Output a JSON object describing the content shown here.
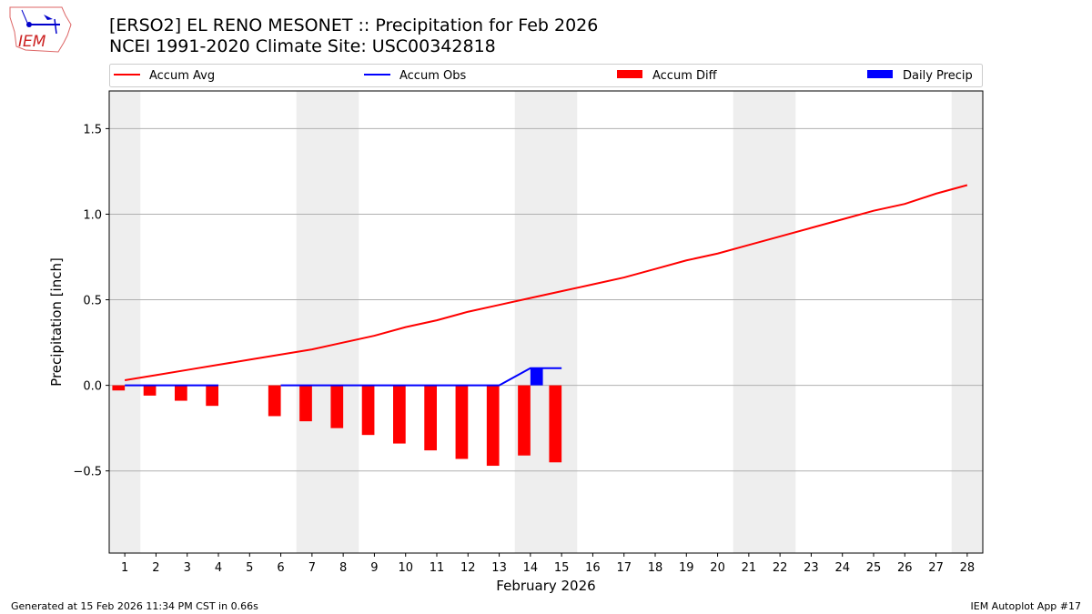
{
  "header": {
    "title": "[ERSO2] EL RENO MESONET :: Precipitation for Feb 2026",
    "subtitle": "NCEI 1991-2020 Climate Site: USC00342818",
    "logo_text": "IEM"
  },
  "footer": {
    "left": "Generated at 15 Feb 2026 11:34 PM CST in 0.66s",
    "right": "IEM Autoplot App #17"
  },
  "chart_data": {
    "type": "line+bar",
    "xlabel": "February 2026",
    "ylabel": "Precipitation [inch]",
    "xlim": [
      0.5,
      28.5
    ],
    "ylim": [
      -0.98,
      1.72
    ],
    "x_ticks": [
      1,
      2,
      3,
      4,
      5,
      6,
      7,
      8,
      9,
      10,
      11,
      12,
      13,
      14,
      15,
      16,
      17,
      18,
      19,
      20,
      21,
      22,
      23,
      24,
      25,
      26,
      27,
      28
    ],
    "y_ticks": [
      {
        "v": -0.5,
        "label": "−0.5"
      },
      {
        "v": 0,
        "label": "0.0"
      },
      {
        "v": 0.5,
        "label": "0.5"
      },
      {
        "v": 1.0,
        "label": "1.0"
      },
      {
        "v": 1.5,
        "label": "1.5"
      }
    ],
    "grid": "horizontal",
    "weekend_shading": [
      [
        0.5,
        1.5
      ],
      [
        6.5,
        8.5
      ],
      [
        13.5,
        15.5
      ],
      [
        20.5,
        22.5
      ],
      [
        27.5,
        28.5
      ]
    ],
    "colors": {
      "avg": "#ff0000",
      "obs": "#0000ff",
      "diff": "#ff0000",
      "daily": "#0000ff",
      "shade": "#eeeeee"
    },
    "legend_position": "top",
    "series": [
      {
        "name": "Accum Avg",
        "kind": "line",
        "values": [
          0.03,
          0.06,
          0.09,
          0.12,
          0.15,
          0.18,
          0.21,
          0.25,
          0.29,
          0.34,
          0.38,
          0.43,
          0.47,
          0.51,
          0.55,
          0.59,
          0.63,
          0.68,
          0.73,
          0.77,
          0.82,
          0.87,
          0.92,
          0.97,
          1.02,
          1.06,
          1.12,
          1.17
        ]
      },
      {
        "name": "Accum Obs",
        "kind": "line",
        "values": [
          0,
          0,
          0,
          0,
          null,
          0,
          0,
          0,
          0,
          0,
          0,
          0,
          0,
          0.1,
          0.1
        ]
      },
      {
        "name": "Accum Diff",
        "kind": "bar",
        "values": [
          -0.03,
          -0.06,
          -0.09,
          -0.12,
          null,
          -0.18,
          -0.21,
          -0.25,
          -0.29,
          -0.34,
          -0.38,
          -0.43,
          -0.47,
          -0.41,
          -0.45
        ]
      },
      {
        "name": "Daily Precip",
        "kind": "bar",
        "values": [
          0,
          0,
          0,
          0,
          null,
          0,
          0,
          0,
          0,
          0,
          0,
          0,
          0,
          0.1,
          0
        ]
      }
    ]
  }
}
